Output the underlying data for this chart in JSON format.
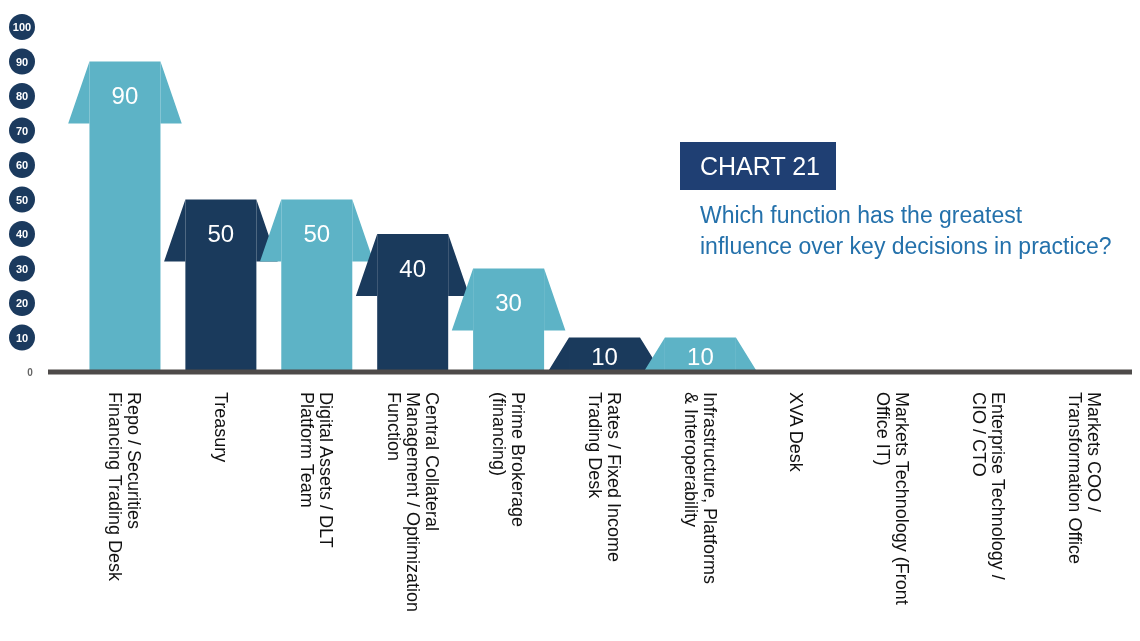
{
  "chart_data": {
    "type": "bar",
    "title": "CHART 21",
    "subtitle": "Which function has the greatest influence over key decisions in practice?",
    "categories": [
      "Repo / Securities Financing Trading Desk",
      "Treasury",
      "Digital Assets / DLT Platform Team",
      "Central Collateral Management / Optimization Function",
      "Prime Brokerage (financing)",
      "Rates / Fixed Income Trading Desk",
      "Infrastructure, Platforms & Interoperability",
      "XVA Desk",
      "Markets Technology (Front Office IT)",
      "Enterprise Technology / CIO / CTO",
      "Markets COO / Transformation Office"
    ],
    "values": [
      90,
      50,
      50,
      40,
      30,
      10,
      10,
      0,
      0,
      0,
      0
    ],
    "colors": [
      "#5db3c6",
      "#1a3a5c",
      "#5db3c6",
      "#1a3a5c",
      "#5db3c6",
      "#1a3a5c",
      "#5db3c6",
      "#5db3c6",
      "#5db3c6",
      "#5db3c6",
      "#5db3c6"
    ],
    "value_labels": [
      "90",
      "50",
      "50",
      "40",
      "30",
      "10",
      "10",
      null,
      null,
      null,
      null
    ],
    "ylim": [
      0,
      100
    ],
    "yticks": [
      0,
      10,
      20,
      30,
      40,
      50,
      60,
      70,
      80,
      90,
      100
    ]
  }
}
